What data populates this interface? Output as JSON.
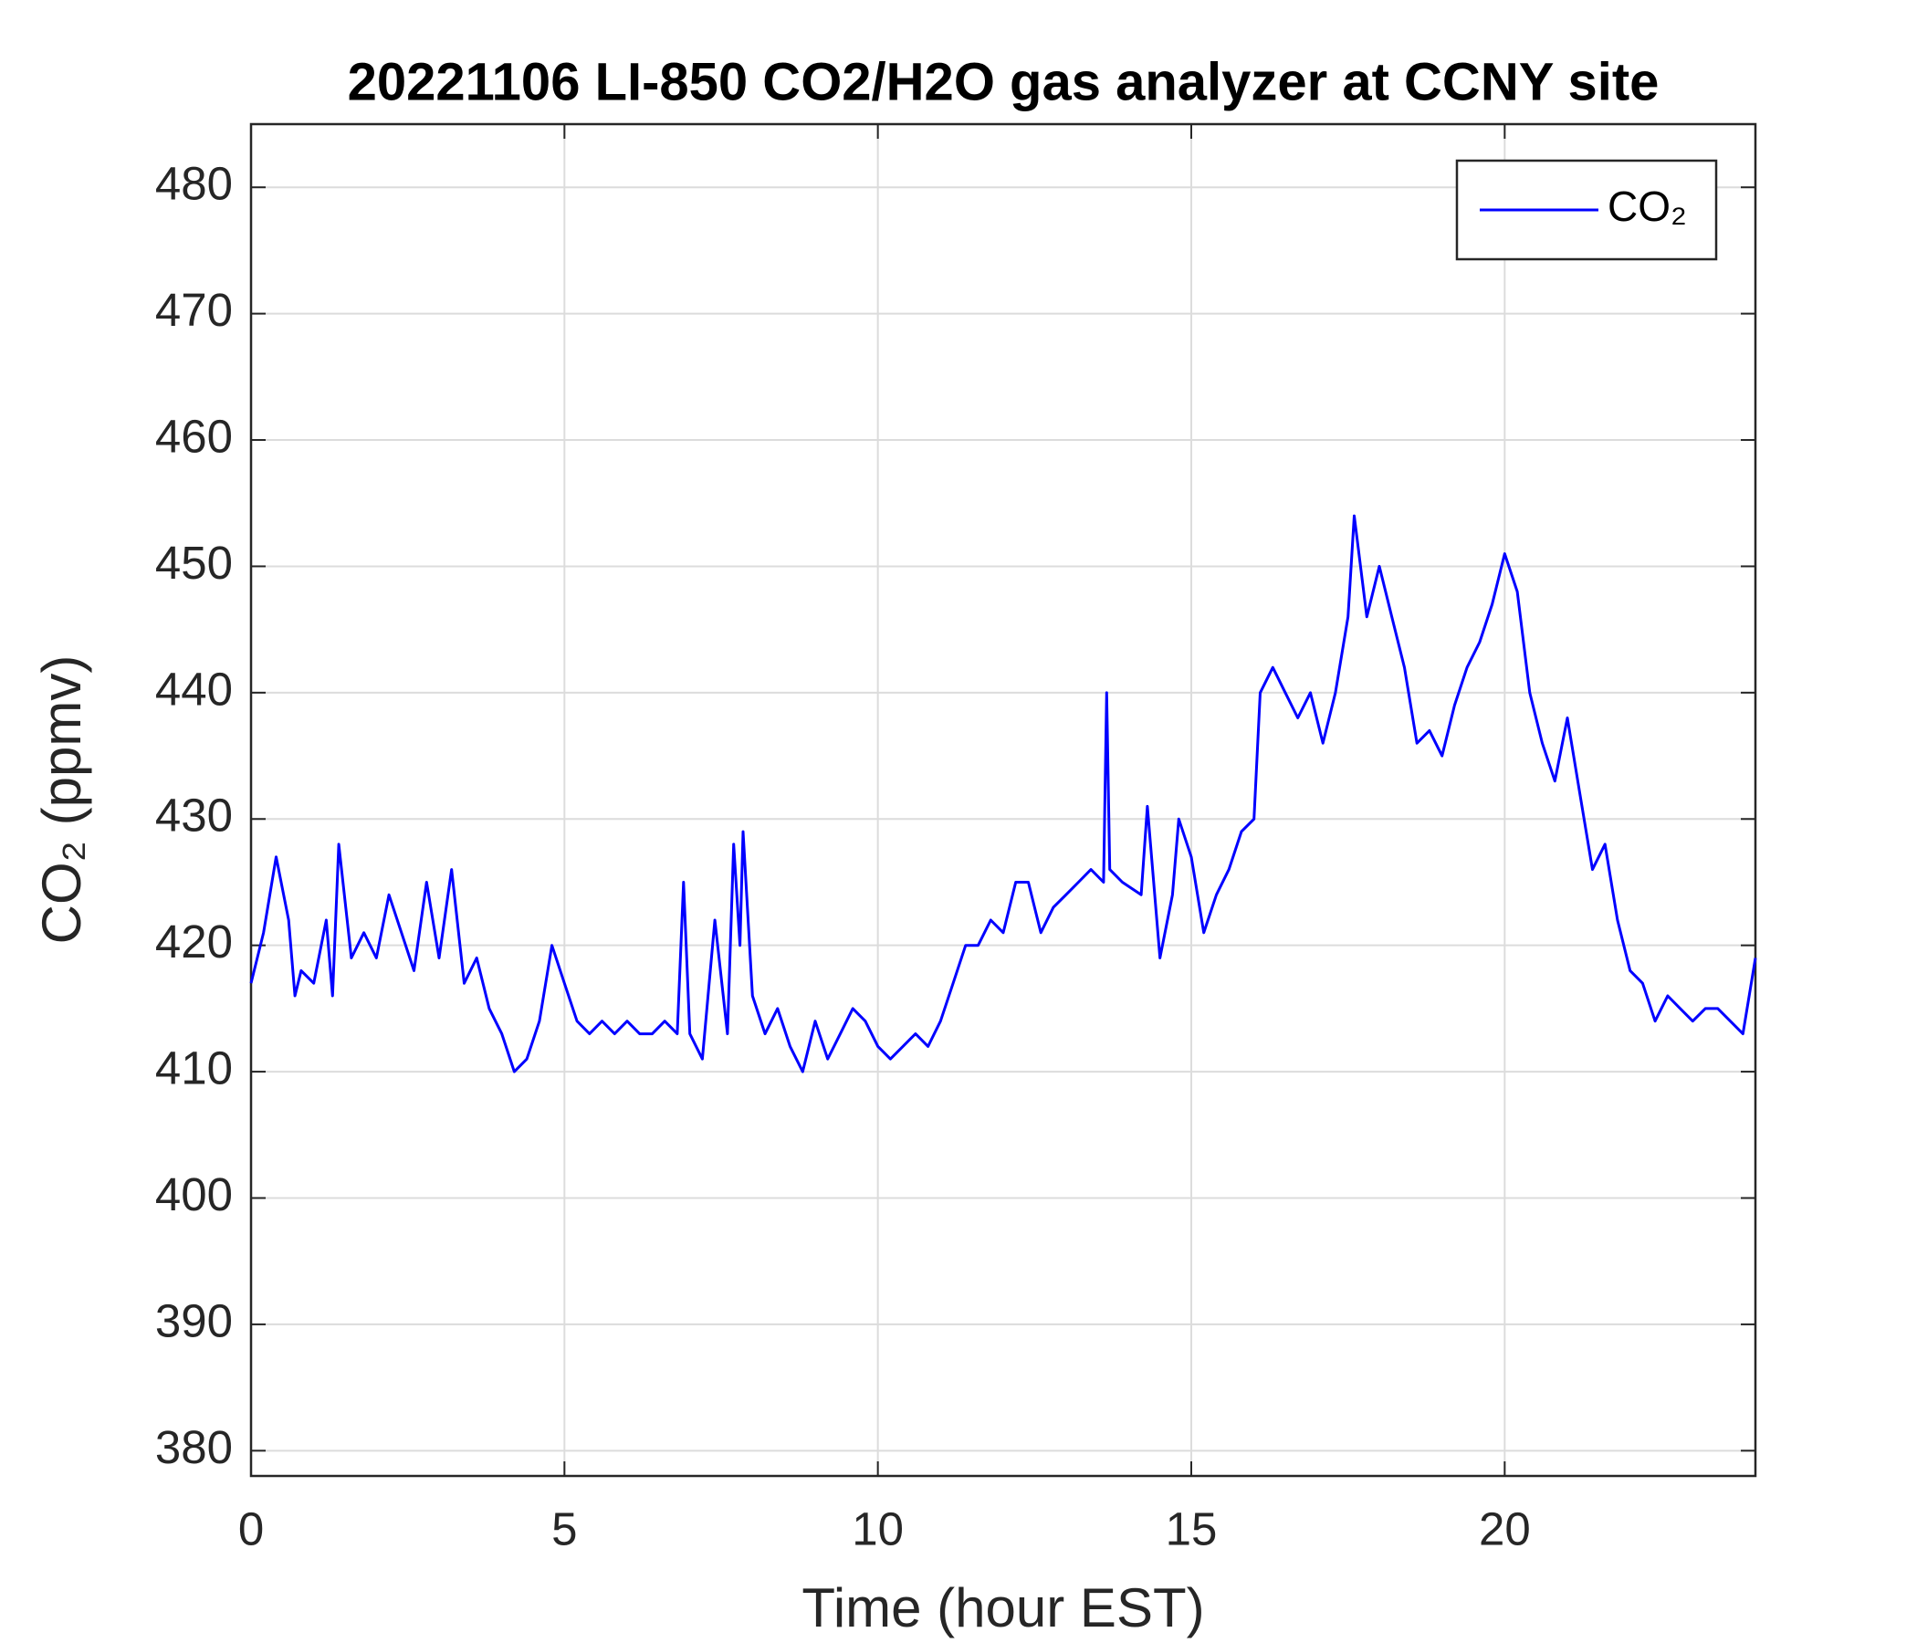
{
  "chart_data": {
    "type": "line",
    "title": "20221106 LI-850 CO2/H2O gas analyzer at CCNY site",
    "x_label": "Time (hour EST)",
    "y_label": "CO₂ (ppmv)",
    "xlim": [
      0,
      24
    ],
    "xticks": [
      0,
      5,
      10,
      15,
      20
    ],
    "ylim": [
      378,
      485
    ],
    "yticks": [
      380,
      390,
      400,
      410,
      420,
      430,
      440,
      450,
      460,
      470,
      480
    ],
    "grid": true,
    "legend": "upper right",
    "x": [
      0,
      0.2,
      0.4,
      0.6,
      0.7,
      0.8,
      1.0,
      1.2,
      1.3,
      1.4,
      1.6,
      1.8,
      2.0,
      2.2,
      2.4,
      2.6,
      2.8,
      3.0,
      3.2,
      3.4,
      3.6,
      3.8,
      4.0,
      4.2,
      4.4,
      4.6,
      4.8,
      5.0,
      5.2,
      5.4,
      5.6,
      5.8,
      6.0,
      6.2,
      6.4,
      6.6,
      6.8,
      6.9,
      7.0,
      7.2,
      7.4,
      7.6,
      7.7,
      7.8,
      7.85,
      8.0,
      8.2,
      8.4,
      8.6,
      8.8,
      9.0,
      9.2,
      9.4,
      9.6,
      9.8,
      10.0,
      10.2,
      10.4,
      10.6,
      10.8,
      11.0,
      11.2,
      11.4,
      11.6,
      11.8,
      12.0,
      12.2,
      12.4,
      12.6,
      12.8,
      13.0,
      13.2,
      13.4,
      13.6,
      13.65,
      13.7,
      13.9,
      14.2,
      14.3,
      14.5,
      14.7,
      14.8,
      15.0,
      15.2,
      15.4,
      15.6,
      15.8,
      16.0,
      16.1,
      16.3,
      16.5,
      16.7,
      16.9,
      17.1,
      17.3,
      17.5,
      17.6,
      17.8,
      18.0,
      18.2,
      18.4,
      18.6,
      18.8,
      19.0,
      19.2,
      19.4,
      19.6,
      19.8,
      20.0,
      20.2,
      20.4,
      20.6,
      20.8,
      21.0,
      21.2,
      21.4,
      21.6,
      21.8,
      22.0,
      22.2,
      22.4,
      22.6,
      22.8,
      23.0,
      23.2,
      23.4,
      23.6,
      23.8,
      24.0
    ],
    "series": [
      {
        "name": "CO₂",
        "color": "#0000ff",
        "values": [
          417,
          421,
          427,
          422,
          416,
          418,
          417,
          422,
          416,
          428,
          419,
          421,
          419,
          424,
          421,
          418,
          425,
          419,
          426,
          417,
          419,
          415,
          413,
          410,
          411,
          414,
          420,
          417,
          414,
          413,
          414,
          413,
          414,
          413,
          413,
          414,
          413,
          425,
          413,
          411,
          422,
          413,
          428,
          420,
          429,
          416,
          413,
          415,
          412,
          410,
          414,
          411,
          413,
          415,
          414,
          412,
          411,
          412,
          413,
          412,
          414,
          417,
          420,
          420,
          422,
          421,
          425,
          425,
          421,
          423,
          424,
          425,
          426,
          425,
          440,
          426,
          425,
          424,
          431,
          419,
          424,
          430,
          427,
          421,
          424,
          426,
          429,
          430,
          440,
          442,
          440,
          438,
          440,
          436,
          440,
          446,
          454,
          446,
          450,
          446,
          442,
          436,
          437,
          435,
          439,
          442,
          444,
          447,
          451,
          448,
          440,
          436,
          433,
          438,
          432,
          426,
          428,
          422,
          418,
          417,
          414,
          416,
          415,
          414,
          415,
          415,
          414,
          413,
          419
        ]
      }
    ]
  }
}
